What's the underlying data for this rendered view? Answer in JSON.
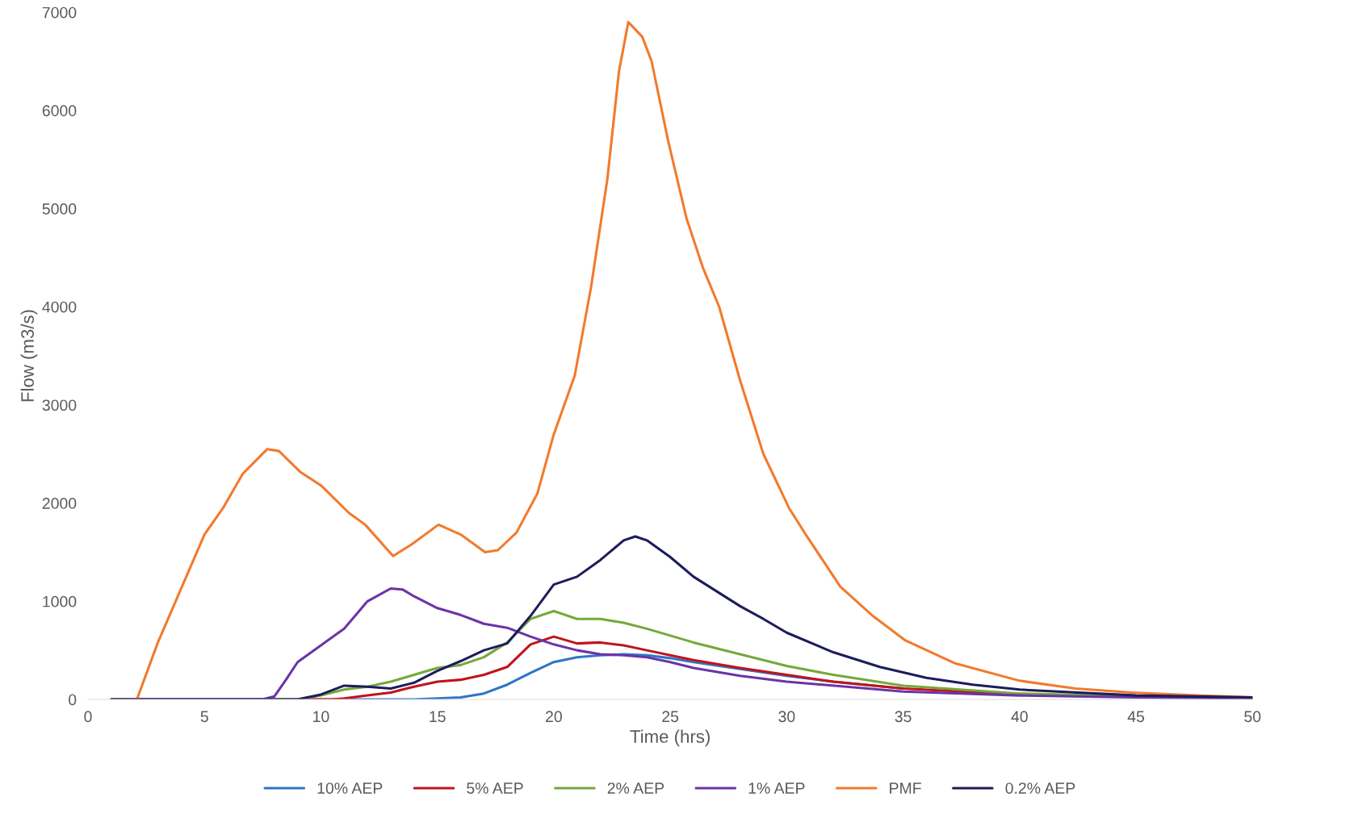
{
  "chart_data": {
    "type": "line",
    "xlabel": "Time (hrs)",
    "ylabel": "Flow (m3/s)",
    "xlim": [
      0,
      50
    ],
    "ylim": [
      0,
      7000
    ],
    "xticks": [
      0,
      5,
      10,
      15,
      20,
      25,
      30,
      35,
      40,
      45,
      50
    ],
    "yticks": [
      0,
      1000,
      2000,
      3000,
      4000,
      5000,
      6000,
      7000
    ],
    "grid": false,
    "legend": "bottom",
    "marker": "none",
    "line_style": "solid",
    "series": [
      {
        "name": "10% AEP",
        "color": "#2e75c6",
        "x": [
          1,
          14,
          15,
          16,
          17,
          18,
          19,
          20,
          21,
          22,
          23,
          24,
          25,
          26,
          28,
          30,
          32,
          35
        ],
        "values": [
          0,
          0,
          10,
          20,
          60,
          150,
          270,
          380,
          430,
          450,
          460,
          450,
          420,
          380,
          310,
          240,
          180,
          110
        ]
      },
      {
        "name": "5% AEP",
        "color": "#c0141c",
        "x": [
          1,
          10.5,
          11,
          12,
          13,
          14,
          15,
          16,
          17,
          18,
          19,
          20,
          21,
          22,
          23,
          24,
          25,
          26,
          28,
          30,
          32,
          35,
          40,
          45,
          50
        ],
        "values": [
          0,
          0,
          10,
          40,
          70,
          130,
          180,
          200,
          250,
          330,
          560,
          640,
          570,
          580,
          550,
          500,
          450,
          400,
          320,
          250,
          180,
          110,
          50,
          30,
          10
        ]
      },
      {
        "name": "2% AEP",
        "color": "#76a83a",
        "x": [
          1,
          9,
          10,
          11,
          12,
          13,
          14,
          15,
          16,
          17,
          18,
          19,
          20,
          21,
          22,
          23,
          24,
          25,
          26,
          28,
          30,
          32,
          35,
          40,
          45,
          50
        ],
        "values": [
          0,
          0,
          40,
          100,
          130,
          180,
          250,
          320,
          350,
          430,
          580,
          820,
          900,
          820,
          820,
          780,
          720,
          650,
          580,
          460,
          340,
          250,
          140,
          60,
          30,
          20
        ]
      },
      {
        "name": "1% AEP",
        "color": "#6a34a8",
        "x": [
          1,
          7.5,
          8,
          8.5,
          9,
          10,
          11,
          12,
          13,
          13.5,
          14,
          15,
          16,
          17,
          18,
          19,
          20,
          21,
          22,
          23,
          24,
          25,
          26,
          28,
          30,
          35,
          40,
          45,
          50
        ],
        "values": [
          0,
          0,
          30,
          200,
          380,
          550,
          720,
          1000,
          1130,
          1120,
          1050,
          930,
          860,
          770,
          730,
          640,
          560,
          500,
          460,
          450,
          430,
          380,
          320,
          240,
          180,
          80,
          40,
          20,
          10
        ]
      },
      {
        "name": "PMF",
        "color": "#f27a2c",
        "x": [
          1,
          2.1,
          3,
          5,
          5.8,
          6.65,
          7.7,
          8.2,
          9.1,
          10,
          11.2,
          11.9,
          13.1,
          13.9,
          15.05,
          16,
          17.05,
          17.6,
          18.4,
          19.3,
          20,
          20.9,
          21.6,
          22.3,
          22.8,
          23.2,
          23.8,
          24.2,
          24.9,
          25.7,
          26.4,
          27.1,
          28,
          29,
          30.1,
          30.9,
          32.3,
          33.7,
          35.1,
          37.2,
          40,
          42.4,
          44.8,
          47.6,
          50
        ],
        "values": [
          0,
          0,
          580,
          1680,
          1950,
          2300,
          2550,
          2530,
          2320,
          2180,
          1900,
          1780,
          1460,
          1580,
          1780,
          1680,
          1500,
          1520,
          1700,
          2100,
          2700,
          3300,
          4200,
          5300,
          6400,
          6900,
          6750,
          6500,
          5700,
          4900,
          4400,
          4000,
          3250,
          2500,
          1950,
          1650,
          1150,
          850,
          600,
          370,
          190,
          110,
          70,
          40,
          20
        ]
      },
      {
        "name": "0.2% AEP",
        "color": "#1c1c5c",
        "x": [
          1,
          9,
          10,
          11,
          12,
          13,
          14,
          15,
          16,
          17,
          18,
          19,
          20,
          21,
          22,
          23,
          23.5,
          24,
          25,
          26,
          27,
          28,
          29,
          30,
          32,
          34,
          36,
          38,
          40,
          45,
          50
        ],
        "values": [
          0,
          0,
          50,
          140,
          130,
          110,
          170,
          290,
          390,
          500,
          570,
          850,
          1170,
          1250,
          1420,
          1620,
          1660,
          1620,
          1450,
          1250,
          1100,
          950,
          820,
          680,
          480,
          330,
          220,
          150,
          100,
          40,
          20
        ]
      }
    ]
  }
}
